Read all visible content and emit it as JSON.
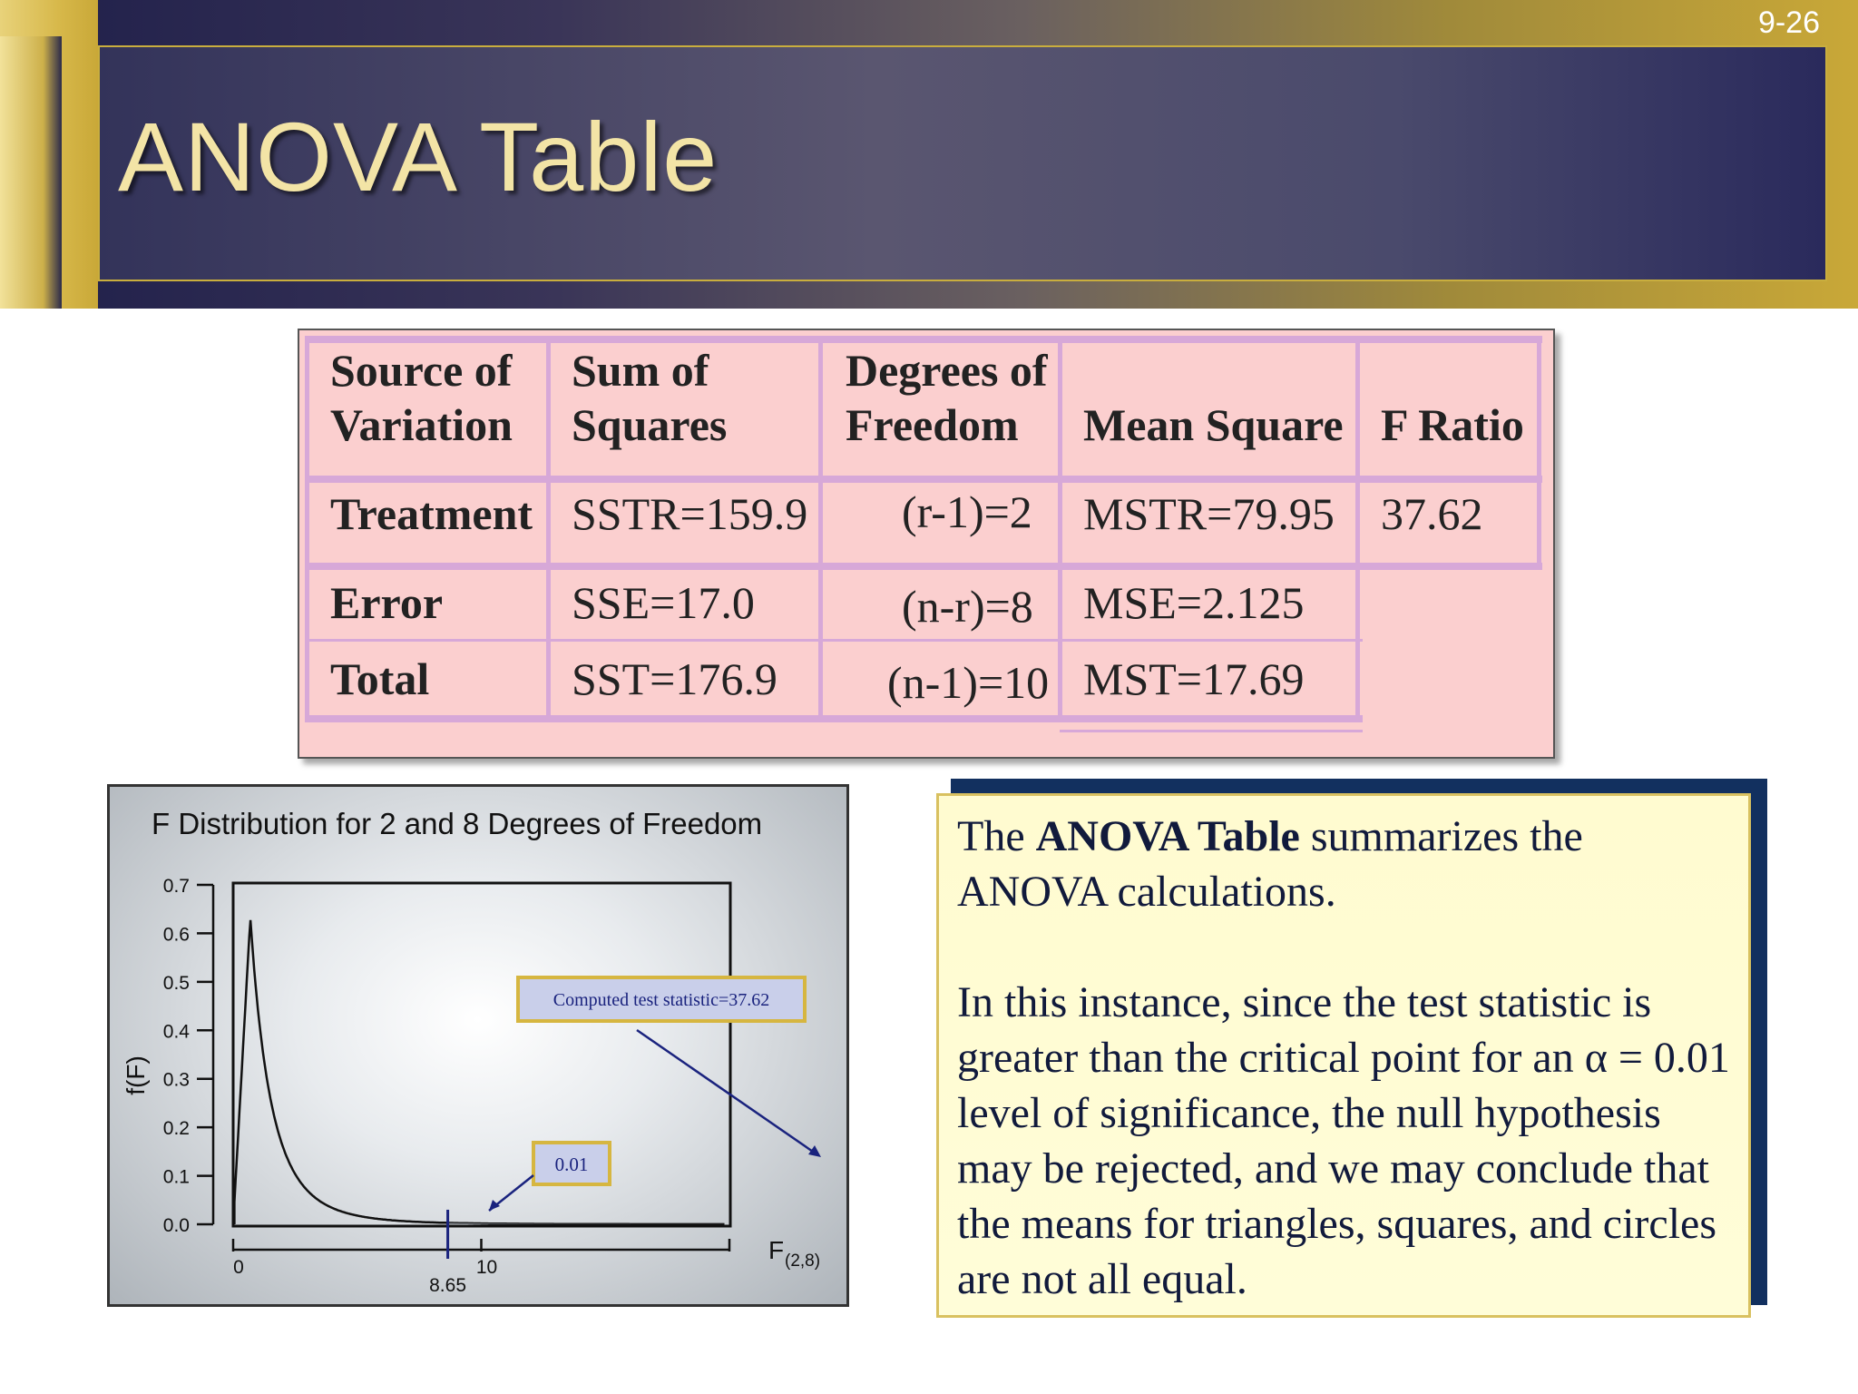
{
  "slide": {
    "number": "9-26",
    "title": "ANOVA Table"
  },
  "anova": {
    "headers": {
      "source_l1": "Source of",
      "source_l2": "Variation",
      "ss_l1": "Sum of",
      "ss_l2": "Squares",
      "df_l1": "Degrees of",
      "df_l2": "Freedom",
      "ms": "Mean Square",
      "f": "F Ratio"
    },
    "rows": [
      {
        "source": "Treatment",
        "ss": "SSTR=159.9",
        "df": "(r-1)=2",
        "ms": "MSTR=79.95",
        "f": "37.62"
      },
      {
        "source": "Error",
        "ss": "SSE=17.0",
        "df": "(n-r)=8",
        "ms": "MSE=2.125",
        "f": ""
      },
      {
        "source": "Total",
        "ss": "SST=176.9",
        "df": "(n-1)=10",
        "ms": "MST=17.69",
        "f": ""
      }
    ]
  },
  "chart_data": {
    "type": "line",
    "title": "F Distribution for 2 and 8 Degrees of Freedom",
    "xlabel": "F(2,8)",
    "xlabel_main": "F",
    "xlabel_sub": "(2,8)",
    "ylabel": "f(F)",
    "xlim": [
      0,
      20
    ],
    "ylim": [
      0,
      0.7
    ],
    "yticks": [
      "0.0",
      "0.1",
      "0.2",
      "0.3",
      "0.4",
      "0.5",
      "0.6",
      "0.7"
    ],
    "xticks": [
      "0",
      "10"
    ],
    "critical_value": 8.65,
    "critical_label": "8.65",
    "tail_area_label": "0.01",
    "statistic_label": "Computed test statistic=37.62",
    "df1": 2,
    "df2": 8
  },
  "explanation": {
    "p1_pre": "The ",
    "p1_bold": "ANOVA Table",
    "p1_post": " summarizes the ANOVA calculations.",
    "p2": "In this instance, since the test statistic is greater than the critical point for an α = 0.01 level of significance, the null hypothesis may be rejected, and we may conclude that the means for triangles, squares, and circles are not all equal."
  }
}
